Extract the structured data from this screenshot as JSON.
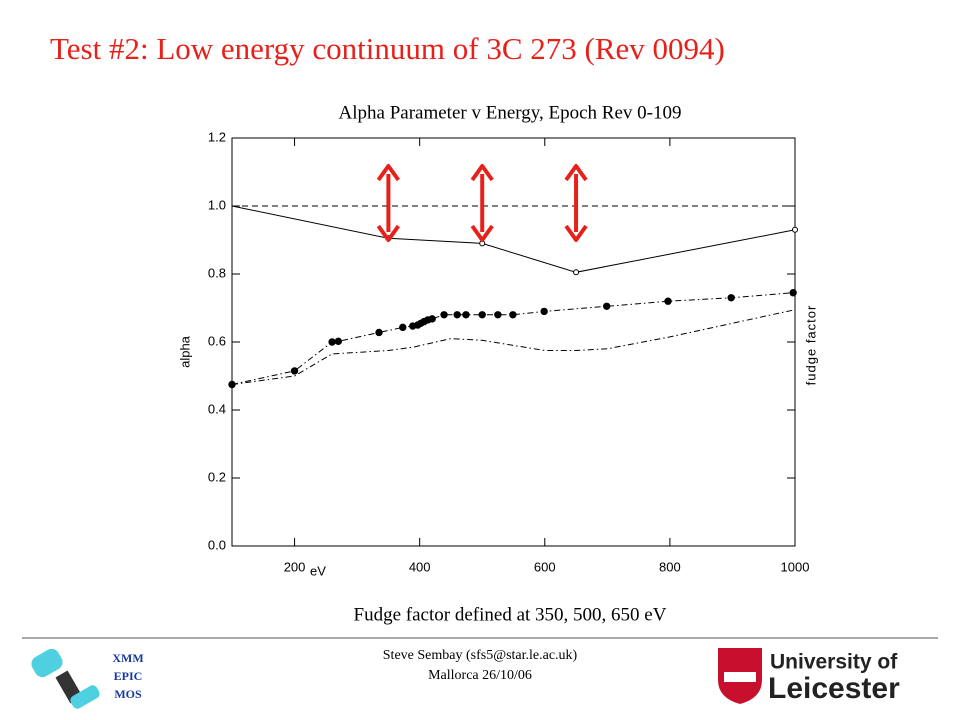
{
  "slide": {
    "title": "Test #2: Low energy continuum of 3C 273 (Rev 0094)",
    "caption": "Fudge factor defined at 350, 500, 650 eV",
    "footer": [
      "Steve Sembay (sfs5@star.le.ac.uk)",
      "Mallorca 26/10/06"
    ],
    "left_logo": [
      "XMM",
      "EPIC",
      "MOS"
    ],
    "right_logo": [
      "University of",
      "Leicester"
    ]
  },
  "chart_data": {
    "type": "line",
    "title": "Alpha Parameter v Energy, Epoch Rev 0-109",
    "xlabel": "eV",
    "ylabel": "alpha",
    "y2label": "fudge factor",
    "xlim": [
      100,
      1000
    ],
    "ylim": [
      0,
      1.2
    ],
    "xticks": [
      200,
      400,
      600,
      800,
      1000
    ],
    "yticks": [
      {
        "value": 0,
        "label": "0.0"
      },
      0.2,
      0.4,
      0.6,
      0.8,
      {
        "value": 1,
        "label": "1.0"
      },
      1.2
    ],
    "hline": 1.0,
    "arrows_x": [
      350,
      500,
      650
    ],
    "arrow_color": "#e8201a",
    "series": [
      {
        "color": "#000000",
        "style": "solid",
        "marker": "open",
        "x": [
          100,
          350,
          500,
          650,
          1000
        ],
        "values": [
          1.0,
          0.905,
          0.89,
          0.805,
          0.93
        ],
        "markers_from": 1
      },
      {
        "color": "#000000",
        "style": "dashdot",
        "marker": "filled",
        "x": [
          100,
          200,
          260,
          270,
          335,
          373,
          389,
          397,
          402,
          407,
          413,
          420,
          439,
          460,
          474,
          500,
          525,
          549,
          599,
          699,
          797,
          898,
          997
        ],
        "values": [
          0.475,
          0.515,
          0.6,
          0.602,
          0.628,
          0.643,
          0.647,
          0.65,
          0.655,
          0.66,
          0.665,
          0.668,
          0.68,
          0.68,
          0.68,
          0.68,
          0.68,
          0.68,
          0.69,
          0.705,
          0.72,
          0.73,
          0.745
        ],
        "markers_from": 0
      },
      {
        "color": "#000000",
        "style": "dashdot",
        "marker": "none",
        "x": [
          100,
          200,
          260,
          350,
          390,
          450,
          500,
          600,
          650,
          700,
          800,
          900,
          1000
        ],
        "values": [
          0.475,
          0.5,
          0.565,
          0.575,
          0.585,
          0.61,
          0.605,
          0.575,
          0.575,
          0.58,
          0.615,
          0.655,
          0.695
        ]
      }
    ]
  }
}
